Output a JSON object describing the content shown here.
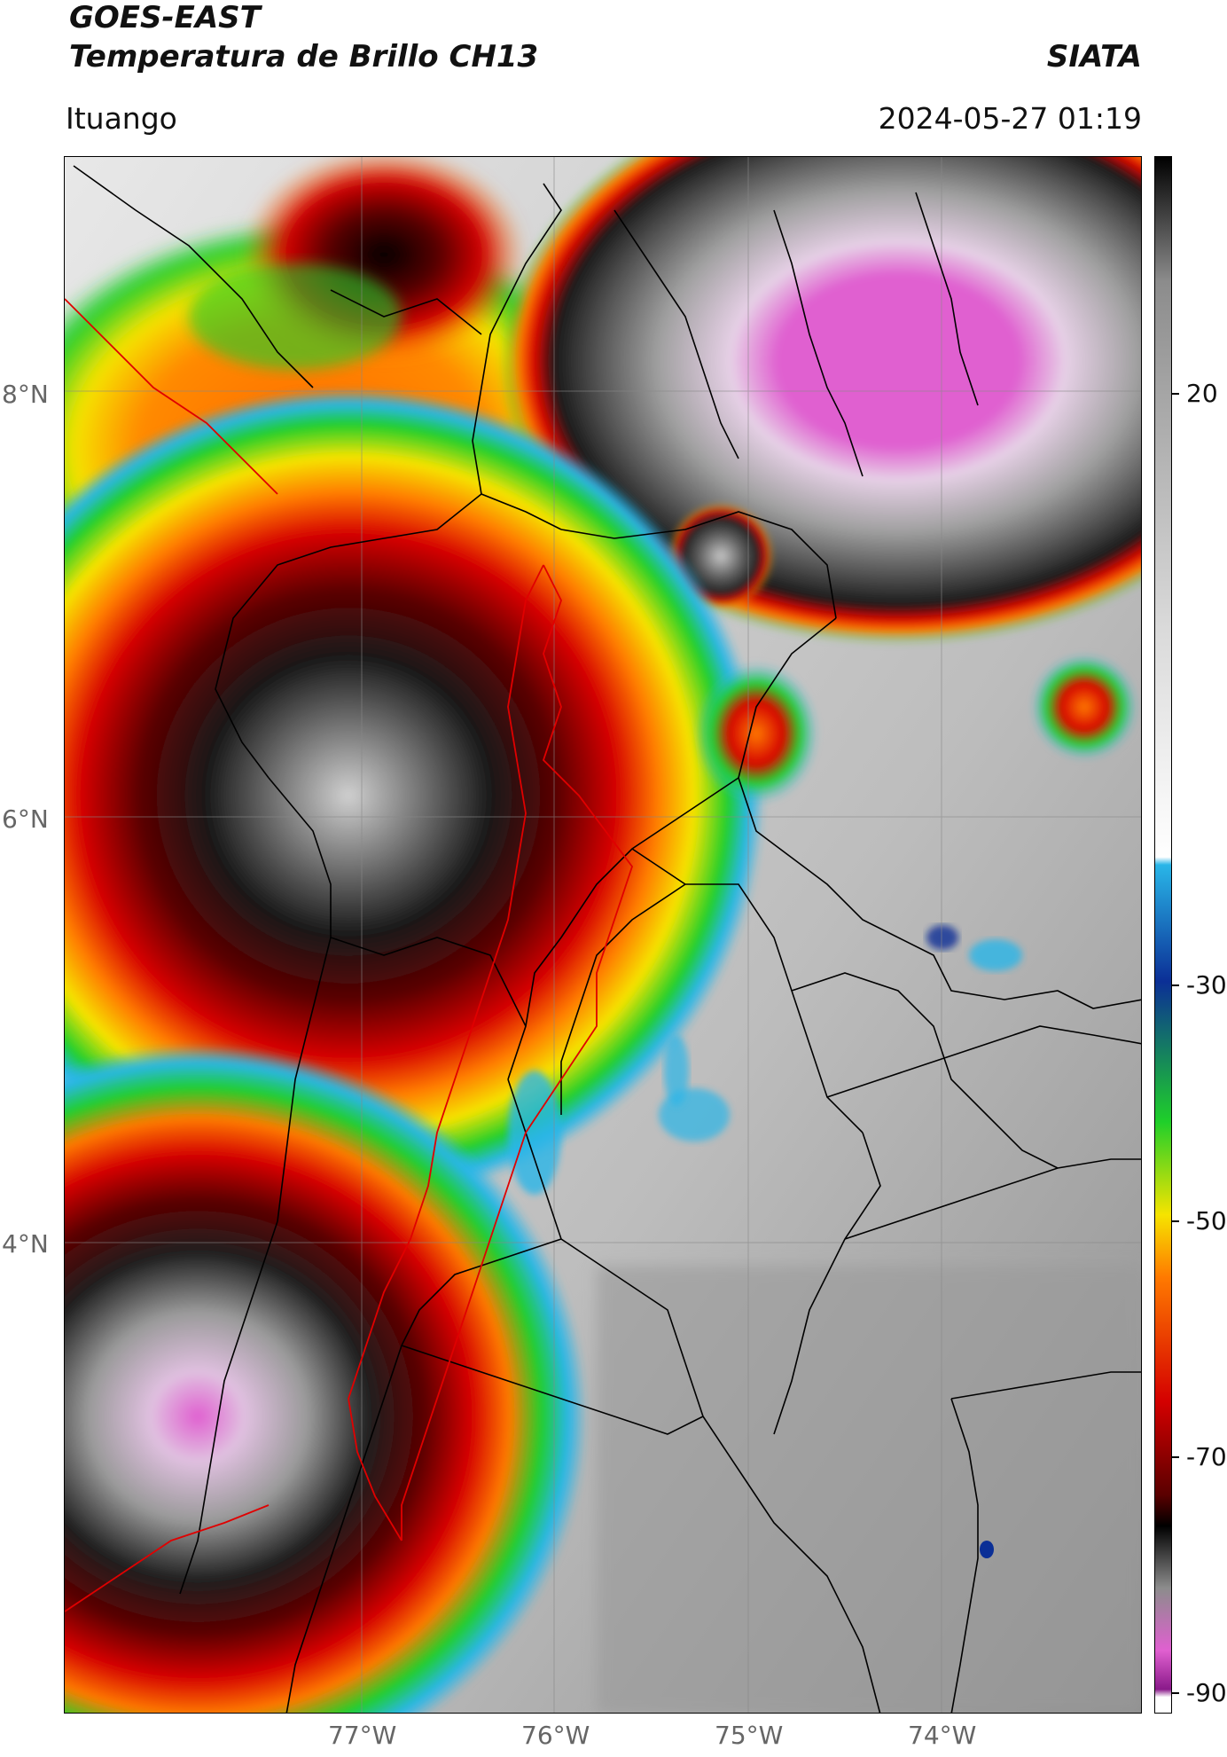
{
  "header": {
    "line1": "GOES-EAST",
    "line2": "Temperatura de Brillo CH13",
    "brand": "SIATA",
    "location": "Ituango",
    "datetime": "2024-05-27 01:19"
  },
  "map": {
    "lat_ticks": [
      "8°N",
      "6°N",
      "4°N"
    ],
    "lon_ticks": [
      "77°W",
      "76°W",
      "75°W",
      "74°W"
    ],
    "gridlines": true
  },
  "colorbar": {
    "tick_labels": [
      "20",
      "-30",
      "-50",
      "-70",
      "-90"
    ],
    "range": [
      -90,
      20
    ],
    "colors": {
      "warm": "#ffffff",
      "gray_light": "#d9d9d9",
      "gray_mid": "#8c8c8c",
      "cyan": "#29b6e8",
      "blue": "#0b2f96",
      "green": "#1fcf2a",
      "yellow": "#f6e400",
      "orange": "#ff7a00",
      "red": "#d40000",
      "dark_red": "#5a0000",
      "black": "#000000",
      "magenta": "#e060d0",
      "purple": "#8a1a8a"
    }
  }
}
